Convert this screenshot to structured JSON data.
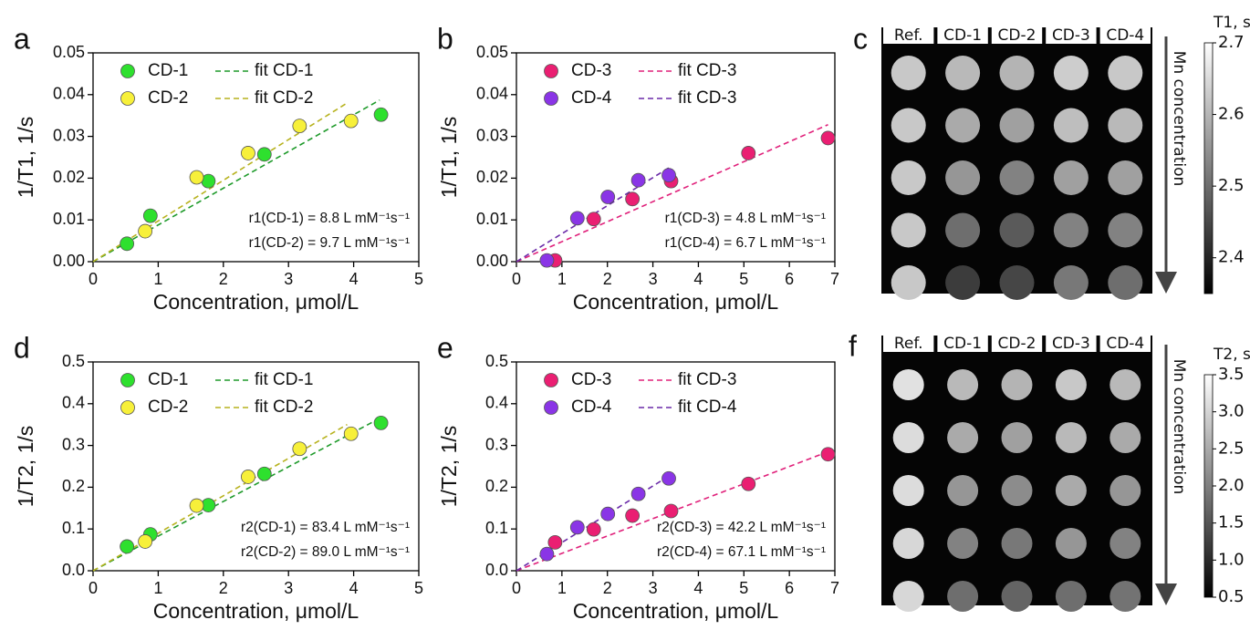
{
  "chart_data": [
    {
      "type": "scatter",
      "panel_label": "a",
      "xlabel": "Concentration, μmol/L",
      "ylabel": "1/T1, 1/s",
      "xlim": [
        0,
        5
      ],
      "ylim": [
        0,
        0.05
      ],
      "xticks": [
        0,
        1,
        2,
        3,
        4,
        5
      ],
      "yticks": [
        {
          "value": 0,
          "label": "0.00"
        },
        0.01,
        0.02,
        0.03,
        0.04,
        0.05
      ],
      "legend": "upper left",
      "series": [
        {
          "name": "CD-1",
          "color": "#2ee02e",
          "marker": "circle",
          "x": [
            0.52,
            0.88,
            1.77,
            2.63,
            4.42
          ],
          "values": [
            0.0043,
            0.011,
            0.0193,
            0.0257,
            0.0352
          ]
        },
        {
          "name": "CD-2",
          "color": "#f7f03a",
          "marker": "circle",
          "x": [
            0.8,
            1.59,
            2.38,
            3.17,
            3.96
          ],
          "values": [
            0.0073,
            0.0202,
            0.026,
            0.0325,
            0.0337
          ]
        },
        {
          "name": "fit CD-1",
          "color": "#1e9a2a",
          "style": "dashed",
          "x": [
            0,
            4.4
          ],
          "values": [
            0,
            0.0387
          ]
        },
        {
          "name": "fit CD-2",
          "color": "#b7b21e",
          "style": "dashed",
          "x": [
            0,
            3.9
          ],
          "values": [
            0,
            0.038
          ]
        }
      ],
      "annotations": [
        "r1(CD-1) = 8.8 L mM⁻¹s⁻¹",
        "r1(CD-2) = 9.7 L mM⁻¹s⁻¹"
      ]
    },
    {
      "type": "scatter",
      "panel_label": "b",
      "xlabel": "Concentration, μmol/L",
      "ylabel": "1/T1, 1/s",
      "xlim": [
        0,
        7
      ],
      "ylim": [
        0,
        0.05
      ],
      "xticks": [
        0,
        1,
        2,
        3,
        4,
        5,
        6,
        7
      ],
      "yticks": [
        {
          "value": 0,
          "label": "0.00"
        },
        0.01,
        0.02,
        0.03,
        0.04,
        0.05
      ],
      "legend": "upper left",
      "series": [
        {
          "name": "CD-3",
          "color": "#ea1f72",
          "marker": "circle",
          "x": [
            0.85,
            1.7,
            2.55,
            3.4,
            5.1,
            6.85
          ],
          "values": [
            0.0003,
            0.0102,
            0.015,
            0.0193,
            0.026,
            0.0296
          ]
        },
        {
          "name": "CD-4",
          "color": "#8a35e6",
          "marker": "circle",
          "x": [
            0.67,
            1.34,
            2.01,
            2.68,
            3.35
          ],
          "values": [
            0.0003,
            0.0104,
            0.0155,
            0.0195,
            0.0207
          ]
        },
        {
          "name": "fit CD-3",
          "color": "#e0207a",
          "style": "dashed",
          "x": [
            0,
            6.85
          ],
          "values": [
            0,
            0.0328
          ]
        },
        {
          "name": "fit CD-3",
          "color": "#6a2aa8",
          "style": "dashed",
          "x": [
            0,
            3.4
          ],
          "values": [
            0,
            0.0228
          ]
        }
      ],
      "annotations": [
        "r1(CD-3) = 4.8 L mM⁻¹s⁻¹",
        "r1(CD-4) = 6.7 L mM⁻¹s⁻¹"
      ]
    },
    {
      "type": "image",
      "panel_label": "c",
      "columns": [
        "Ref.",
        "CD-1",
        "CD-2",
        "CD-3",
        "CD-4"
      ],
      "annotation": "Mn concentration",
      "colorbar_label": "T1, s",
      "clim": [
        2.35,
        2.7
      ],
      "cticks": [
        2.4,
        2.5,
        2.6,
        2.7
      ]
    },
    {
      "type": "scatter",
      "panel_label": "d",
      "xlabel": "Concentration, μmol/L",
      "ylabel": "1/T2, 1/s",
      "xlim": [
        0,
        5
      ],
      "ylim": [
        0,
        0.5
      ],
      "xticks": [
        0,
        1,
        2,
        3,
        4,
        5
      ],
      "yticks": [
        {
          "value": 0,
          "label": "0.0"
        },
        0.1,
        0.2,
        0.3,
        0.4,
        0.5
      ],
      "legend": "upper left",
      "series": [
        {
          "name": "CD-1",
          "color": "#2ee02e",
          "marker": "circle",
          "x": [
            0.52,
            0.88,
            1.77,
            2.63,
            4.42
          ],
          "values": [
            0.058,
            0.087,
            0.157,
            0.232,
            0.354
          ]
        },
        {
          "name": "CD-2",
          "color": "#f7f03a",
          "marker": "circle",
          "x": [
            0.8,
            1.59,
            2.38,
            3.17,
            3.96
          ],
          "values": [
            0.07,
            0.156,
            0.225,
            0.292,
            0.328
          ]
        },
        {
          "name": "fit CD-1",
          "color": "#1e9a2a",
          "style": "dashed",
          "x": [
            0,
            4.4
          ],
          "values": [
            0,
            0.365
          ]
        },
        {
          "name": "fit CD-2",
          "color": "#b7b21e",
          "style": "dashed",
          "x": [
            0,
            3.9
          ],
          "values": [
            0,
            0.35
          ]
        }
      ],
      "annotations": [
        "r2(CD-1) = 83.4 L mM⁻¹s⁻¹",
        "r2(CD-2) = 89.0 L mM⁻¹s⁻¹"
      ]
    },
    {
      "type": "scatter",
      "panel_label": "e",
      "xlabel": "Concentration, μmol/L",
      "ylabel": "1/T2, 1/s",
      "xlim": [
        0,
        7
      ],
      "ylim": [
        0,
        0.5
      ],
      "xticks": [
        0,
        1,
        2,
        3,
        4,
        5,
        6,
        7
      ],
      "yticks": [
        {
          "value": 0,
          "label": "0.0"
        },
        0.1,
        0.2,
        0.3,
        0.4,
        0.5
      ],
      "legend": "upper left",
      "series": [
        {
          "name": "CD-3",
          "color": "#ea1f72",
          "marker": "circle",
          "x": [
            0.85,
            1.7,
            2.55,
            3.4,
            5.1,
            6.85
          ],
          "values": [
            0.068,
            0.099,
            0.132,
            0.143,
            0.208,
            0.279
          ]
        },
        {
          "name": "CD-4",
          "color": "#8a35e6",
          "marker": "circle",
          "x": [
            0.67,
            1.34,
            2.01,
            2.68,
            3.35
          ],
          "values": [
            0.04,
            0.104,
            0.136,
            0.184,
            0.221
          ]
        },
        {
          "name": "fit CD-3",
          "color": "#e0207a",
          "style": "dashed",
          "x": [
            0,
            6.85
          ],
          "values": [
            0,
            0.285
          ]
        },
        {
          "name": "fit CD-4",
          "color": "#6a2aa8",
          "style": "dashed",
          "x": [
            0,
            3.4
          ],
          "values": [
            0,
            0.23
          ]
        }
      ],
      "annotations": [
        "r2(CD-3) = 42.2 L mM⁻¹s⁻¹",
        "r2(CD-4) = 67.1 L mM⁻¹s⁻¹"
      ]
    },
    {
      "type": "image",
      "panel_label": "f",
      "columns": [
        "Ref.",
        "CD-1",
        "CD-2",
        "CD-3",
        "CD-4"
      ],
      "annotation": "Mn concentration",
      "colorbar_label": "T2, s",
      "clim": [
        0.5,
        3.5
      ],
      "cticks": [
        0.5,
        {
          "value": 1,
          "label": "1.0"
        },
        1.5,
        {
          "value": 2,
          "label": "2.0"
        },
        2.5,
        {
          "value": 3,
          "label": "3.0"
        },
        3.5
      ]
    }
  ]
}
